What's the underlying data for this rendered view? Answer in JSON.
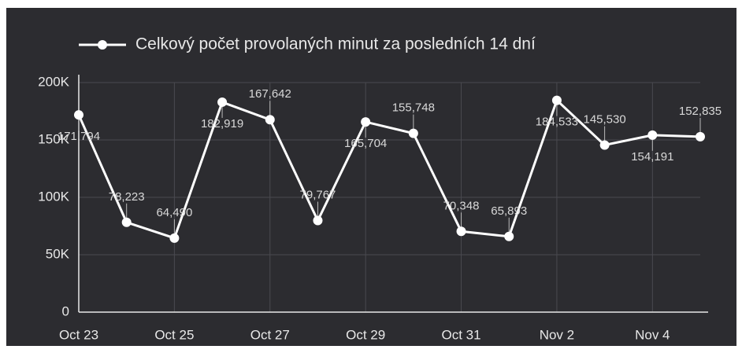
{
  "chart_data": {
    "type": "line",
    "categories": [
      "Oct 23",
      null,
      "Oct 25",
      null,
      "Oct 27",
      null,
      "Oct 29",
      null,
      "Oct 31",
      null,
      "Nov 2",
      null,
      "Nov 4",
      null
    ],
    "series": [
      {
        "name": "Celkový počet provolaných minut za posledních 14 dní",
        "color": "#ffffff",
        "values": [
          171794,
          78223,
          64490,
          182919,
          167642,
          79767,
          165704,
          155748,
          70348,
          65893,
          184533,
          145530,
          154191,
          152835
        ],
        "value_labels": [
          "171,794",
          "78,223",
          "64,490",
          "182,919",
          "167,642",
          "79,767",
          "165,704",
          "155,748",
          "70,348",
          "65,893",
          "184,533",
          "145,530",
          "154,191",
          "152,835"
        ]
      }
    ],
    "ylim": [
      0,
      200000
    ],
    "yticks": [
      0,
      {
        "value": 50000,
        "label": "50K"
      },
      {
        "value": 100000,
        "label": "100K"
      },
      {
        "value": 150000,
        "label": "150K"
      },
      {
        "value": 200000,
        "label": "200K"
      }
    ],
    "grid": true,
    "legend": "top"
  }
}
